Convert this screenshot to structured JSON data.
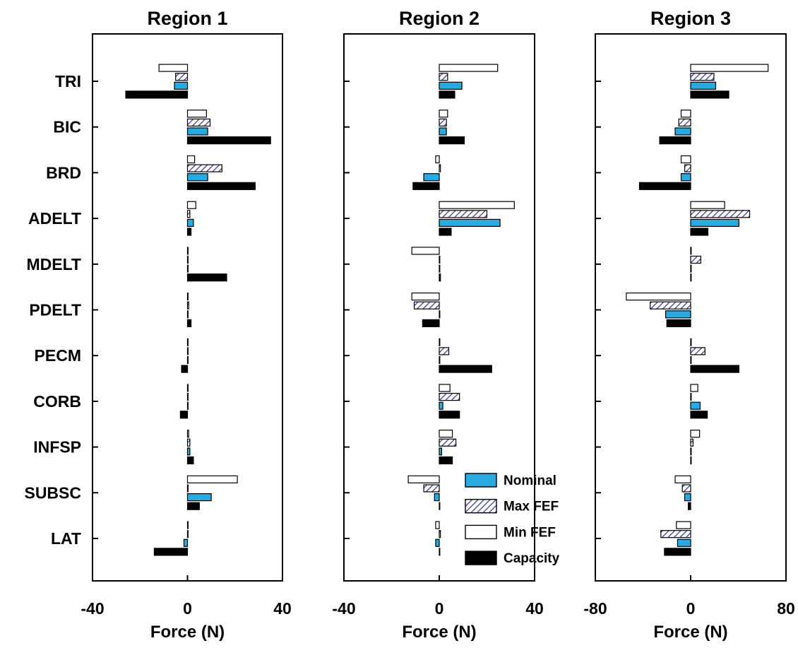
{
  "chart_data": {
    "type": "bar",
    "orientation": "horizontal",
    "colors": {
      "Nominal": "#29abe2",
      "Max FEF": "#3a3f9a",
      "Min FEF": "#ffffff",
      "Capacity": "#000000"
    },
    "categories": [
      "TRI",
      "BIC",
      "BRD",
      "ADELT",
      "MDELT",
      "PDELT",
      "PECM",
      "CORB",
      "INFSP",
      "SUBSC",
      "LAT"
    ],
    "legend": {
      "position": "inside-bottom-right of Region 2",
      "entries": [
        "Nominal",
        "Max FEF",
        "Min FEF",
        "Capacity"
      ]
    },
    "panels": [
      {
        "title": "Region 1",
        "xlabel": "Force (N)",
        "xlim": [
          -40,
          40
        ],
        "xticks": [
          "-40",
          "0",
          "40"
        ],
        "series": [
          {
            "name": "Min FEF",
            "values": [
              -12,
              8,
              3,
              3.5,
              0,
              0,
              0,
              0,
              0.5,
              21,
              0
            ]
          },
          {
            "name": "Max FEF",
            "values": [
              -5,
              9.5,
              14.5,
              1,
              0,
              0.5,
              0,
              0,
              1,
              0,
              0
            ]
          },
          {
            "name": "Nominal",
            "values": [
              -5.5,
              8.5,
              8.5,
              2.5,
              0,
              0,
              0,
              0,
              1,
              10,
              -1.5
            ]
          },
          {
            "name": "Capacity",
            "values": [
              -26,
              35,
              28.5,
              1.5,
              16.5,
              1.5,
              -2.5,
              -3,
              2.5,
              5,
              -14
            ]
          }
        ]
      },
      {
        "title": "Region 2",
        "xlabel": "Force (N)",
        "xlim": [
          -40,
          40
        ],
        "xticks": [
          "-40",
          "0",
          "40"
        ],
        "series": [
          {
            "name": "Min FEF",
            "values": [
              24.5,
              3.5,
              -1.5,
              31.5,
              -11.5,
              -11.5,
              0,
              4.5,
              5.5,
              -13,
              -1.5
            ]
          },
          {
            "name": "Max FEF",
            "values": [
              3.5,
              3,
              0.5,
              20,
              0,
              -10.5,
              4,
              8.5,
              7,
              -6.5,
              0.5
            ]
          },
          {
            "name": "Nominal",
            "values": [
              9.5,
              3,
              -6.5,
              25.5,
              0,
              0,
              0,
              1.5,
              1,
              -2,
              -1.5
            ]
          },
          {
            "name": "Capacity",
            "values": [
              6.5,
              10.5,
              -11,
              5,
              0.5,
              -7,
              22,
              8.5,
              5.5,
              0,
              0
            ]
          }
        ]
      },
      {
        "title": "Region 3",
        "xlabel": "Force (N)",
        "xlim": [
          -80,
          80
        ],
        "xticks": [
          "-80",
          "0",
          "80"
        ],
        "series": [
          {
            "name": "Min FEF",
            "values": [
              65,
              -8,
              -8,
              28.5,
              0,
              -54,
              0,
              6,
              7.5,
              -13,
              -12
            ]
          },
          {
            "name": "Max FEF",
            "values": [
              19.5,
              -10,
              -5,
              49.5,
              8.5,
              -34,
              12,
              0,
              2,
              -7,
              -25
            ]
          },
          {
            "name": "Nominal",
            "values": [
              21,
              -13,
              -8,
              40.5,
              0,
              -21,
              0,
              8,
              0,
              -5,
              -11
            ]
          },
          {
            "name": "Capacity",
            "values": [
              32,
              -26,
              -43,
              14.5,
              0,
              -20,
              40.5,
              14,
              0,
              -2,
              -22
            ]
          }
        ]
      }
    ]
  }
}
